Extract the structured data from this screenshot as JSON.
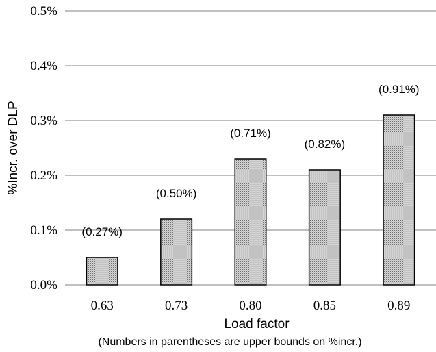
{
  "chart_data": {
    "type": "bar",
    "categories": [
      "0.63",
      "0.73",
      "0.80",
      "0.85",
      "0.89"
    ],
    "values": [
      0.05,
      0.12,
      0.23,
      0.21,
      0.31
    ],
    "data_labels": [
      "(0.27%)",
      "(0.50%)",
      "(0.71%)",
      "(0.82%)",
      "(0.91%)"
    ],
    "xlabel": "Load factor",
    "ylabel": "%Incr. over DLP",
    "note": "(Numbers in parentheses are upper bounds on %incr.)",
    "ylim": [
      0,
      0.5
    ],
    "yticks": [
      "0.0%",
      "0.1%",
      "0.2%",
      "0.3%",
      "0.4%",
      "0.5%"
    ],
    "grid": true,
    "bar_color": "#c8c8c8"
  }
}
